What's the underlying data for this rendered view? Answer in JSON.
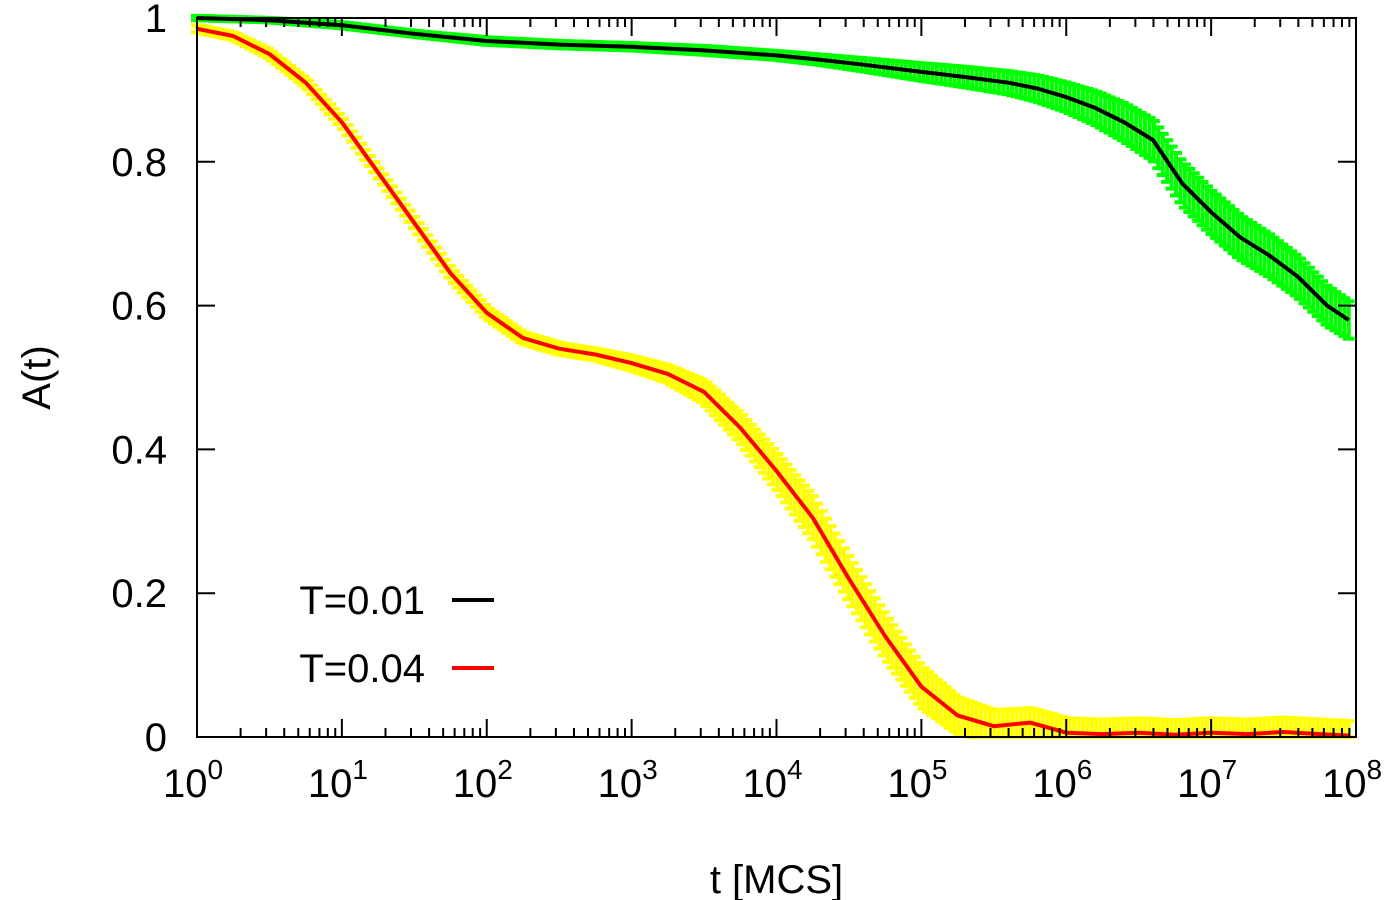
{
  "chart_data": {
    "type": "line",
    "title": "",
    "xlabel": "t [MCS]",
    "ylabel": "A(t)",
    "xscale": "log10",
    "xlim_exponents": [
      0,
      8
    ],
    "ylim": [
      0,
      1
    ],
    "x_ticks": [
      {
        "base": "10",
        "exp": "0"
      },
      {
        "base": "10",
        "exp": "1"
      },
      {
        "base": "10",
        "exp": "2"
      },
      {
        "base": "10",
        "exp": "3"
      },
      {
        "base": "10",
        "exp": "4"
      },
      {
        "base": "10",
        "exp": "5"
      },
      {
        "base": "10",
        "exp": "6"
      },
      {
        "base": "10",
        "exp": "7"
      },
      {
        "base": "10",
        "exp": "8"
      }
    ],
    "y_ticks": [
      "0",
      "0.2",
      "0.4",
      "0.6",
      "0.8",
      "1"
    ],
    "y_tick_values": [
      0,
      0.2,
      0.4,
      0.6,
      0.8,
      1
    ],
    "grid": false,
    "legend_position": "bottom-left",
    "series": [
      {
        "name": "T=0.01",
        "color": "#000000",
        "error_color": "#00ff00",
        "log10_t": [
          0,
          0.5,
          1,
          1.5,
          2,
          2.5,
          3,
          3.5,
          4,
          4.3,
          4.6,
          5,
          5.3,
          5.6,
          5.8,
          6,
          6.2,
          6.4,
          6.6,
          6.8,
          7,
          7.2,
          7.4,
          7.6,
          7.8,
          7.95
        ],
        "values": [
          1.0,
          0.997,
          0.99,
          0.978,
          0.968,
          0.963,
          0.96,
          0.955,
          0.948,
          0.942,
          0.935,
          0.925,
          0.918,
          0.91,
          0.902,
          0.89,
          0.875,
          0.855,
          0.83,
          0.77,
          0.73,
          0.695,
          0.67,
          0.64,
          0.6,
          0.58
        ],
        "error": [
          0.003,
          0.003,
          0.004,
          0.004,
          0.005,
          0.005,
          0.005,
          0.006,
          0.006,
          0.007,
          0.009,
          0.012,
          0.014,
          0.016,
          0.018,
          0.02,
          0.023,
          0.026,
          0.028,
          0.03,
          0.03,
          0.03,
          0.029,
          0.028,
          0.027,
          0.026
        ]
      },
      {
        "name": "T=0.04",
        "color": "#ff0000",
        "error_color": "#ffff00",
        "log10_t": [
          0,
          0.25,
          0.5,
          0.75,
          1,
          1.25,
          1.5,
          1.75,
          2,
          2.25,
          2.5,
          2.75,
          3,
          3.25,
          3.5,
          3.75,
          4,
          4.25,
          4.5,
          4.75,
          5,
          5.25,
          5.5,
          5.75,
          6,
          6.25,
          6.5,
          6.75,
          7,
          7.25,
          7.5,
          7.75,
          7.95
        ],
        "values": [
          0.985,
          0.975,
          0.95,
          0.91,
          0.855,
          0.785,
          0.715,
          0.645,
          0.59,
          0.555,
          0.54,
          0.532,
          0.52,
          0.505,
          0.48,
          0.43,
          0.37,
          0.305,
          0.22,
          0.14,
          0.07,
          0.03,
          0.015,
          0.02,
          0.006,
          0.004,
          0.006,
          0.003,
          0.006,
          0.004,
          0.007,
          0.004,
          0.002
        ],
        "error": [
          0.005,
          0.005,
          0.006,
          0.006,
          0.007,
          0.007,
          0.008,
          0.008,
          0.008,
          0.008,
          0.008,
          0.008,
          0.01,
          0.012,
          0.016,
          0.02,
          0.025,
          0.03,
          0.03,
          0.03,
          0.028,
          0.025,
          0.022,
          0.02,
          0.02,
          0.02,
          0.02,
          0.02,
          0.02,
          0.02,
          0.02,
          0.02,
          0.02
        ]
      }
    ]
  }
}
